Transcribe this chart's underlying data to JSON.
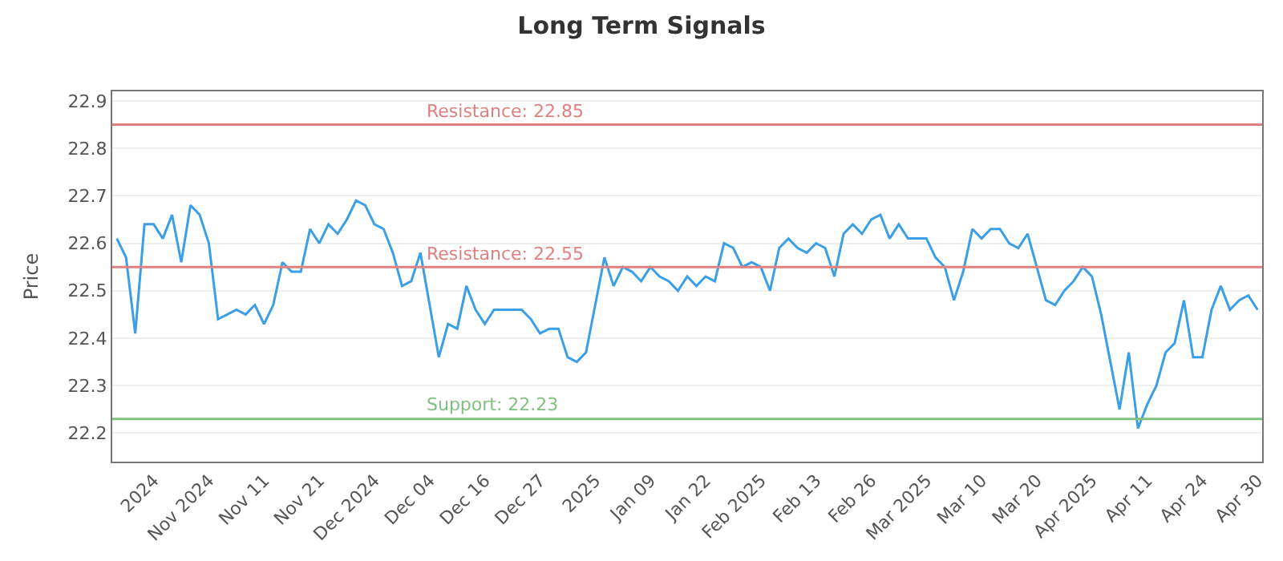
{
  "chart_data": {
    "type": "line",
    "title": "Long Term Signals",
    "ylabel": "Price",
    "categories": [
      null,
      null,
      null,
      null,
      "2024",
      null,
      null,
      null,
      null,
      null,
      "Nov 2024",
      null,
      null,
      null,
      null,
      null,
      "Nov 11",
      null,
      null,
      null,
      null,
      null,
      "Nov 21",
      null,
      null,
      null,
      null,
      null,
      "Dec 2024",
      null,
      null,
      null,
      null,
      null,
      "Dec 04",
      null,
      null,
      null,
      null,
      null,
      "Dec 16",
      null,
      null,
      null,
      null,
      null,
      "Dec 27",
      null,
      null,
      null,
      null,
      null,
      "2025",
      null,
      null,
      null,
      null,
      null,
      "Jan 09",
      null,
      null,
      null,
      null,
      null,
      "Jan 22",
      null,
      null,
      null,
      null,
      null,
      "Feb 2025",
      null,
      null,
      null,
      null,
      null,
      "Feb 13",
      null,
      null,
      null,
      null,
      null,
      "Feb 26",
      null,
      null,
      null,
      null,
      null,
      "Mar 2025",
      null,
      null,
      null,
      null,
      null,
      "Mar 10",
      null,
      null,
      null,
      null,
      null,
      "Mar 20",
      null,
      null,
      null,
      null,
      null,
      "Apr 2025",
      null,
      null,
      null,
      null,
      null,
      "Apr 11",
      null,
      null,
      null,
      null,
      null,
      "Apr 24",
      null,
      null,
      null,
      null,
      null,
      "Apr 30"
    ],
    "series": [
      {
        "color": "#3a9fe6",
        "values": [
          22.61,
          22.57,
          22.41,
          22.64,
          22.64,
          22.61,
          22.66,
          22.56,
          22.68,
          22.66,
          22.6,
          22.44,
          22.45,
          22.46,
          22.45,
          22.47,
          22.43,
          22.47,
          22.56,
          22.54,
          22.54,
          22.63,
          22.6,
          22.64,
          22.62,
          22.65,
          22.69,
          22.68,
          22.64,
          22.63,
          22.58,
          22.51,
          22.52,
          22.58,
          22.47,
          22.36,
          22.43,
          22.42,
          22.51,
          22.46,
          22.43,
          22.46,
          22.46,
          22.46,
          22.46,
          22.44,
          22.41,
          22.42,
          22.42,
          22.36,
          22.35,
          22.37,
          22.47,
          22.57,
          22.51,
          22.55,
          22.54,
          22.52,
          22.55,
          22.53,
          22.52,
          22.5,
          22.53,
          22.51,
          22.53,
          22.52,
          22.6,
          22.59,
          22.55,
          22.56,
          22.55,
          22.5,
          22.59,
          22.61,
          22.59,
          22.58,
          22.6,
          22.59,
          22.53,
          22.62,
          22.64,
          22.62,
          22.65,
          22.66,
          22.61,
          22.64,
          22.61,
          22.61,
          22.61,
          22.57,
          22.55,
          22.48,
          22.54,
          22.63,
          22.61,
          22.63,
          22.63,
          22.6,
          22.59,
          22.62,
          22.55,
          22.48,
          22.47,
          22.5,
          22.52,
          22.55,
          22.53,
          22.45,
          22.35,
          22.25,
          22.37,
          22.21,
          22.26,
          22.3,
          22.37,
          22.39,
          22.48,
          22.36,
          22.36,
          22.46,
          22.51,
          22.46,
          22.48,
          22.49,
          22.46
        ]
      }
    ],
    "ylim": [
      22.14,
      22.92
    ],
    "yticks": [
      22.2,
      22.3,
      22.4,
      22.5,
      22.6,
      22.7,
      22.8,
      22.9
    ],
    "grid": "y",
    "marker": "none",
    "line_style": "solid",
    "ref_lines": [
      {
        "axis": "y",
        "value": 22.85,
        "label": "Resistance: 22.85",
        "color": "#e08080"
      },
      {
        "axis": "y",
        "value": 22.55,
        "label": "Resistance: 22.55",
        "color": "#e08080"
      },
      {
        "axis": "y",
        "value": 22.23,
        "label": "Support: 22.23",
        "color": "#80c080"
      }
    ]
  }
}
